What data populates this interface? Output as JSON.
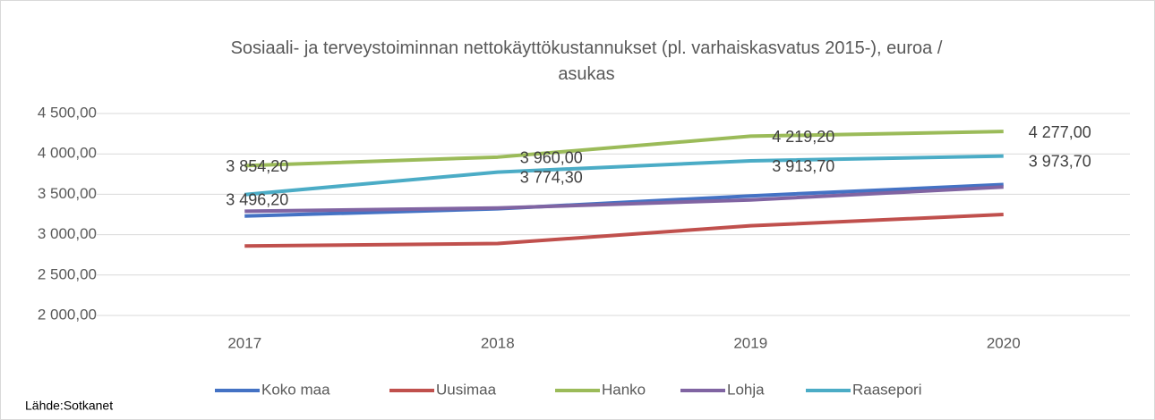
{
  "chart_data": {
    "type": "line",
    "title": "Sosiaali- ja terveystoiminnan nettokäyttökustannukset (pl. varhaiskasvatus 2015-), euroa / asukas",
    "categories": [
      "2017",
      "2018",
      "2019",
      "2020"
    ],
    "series": [
      {
        "name": "Koko maa",
        "color": "#4472c4",
        "values": [
          3230,
          3320,
          3480,
          3620
        ]
      },
      {
        "name": "Uusimaa",
        "color": "#c0504d",
        "values": [
          2860,
          2890,
          3110,
          3250
        ]
      },
      {
        "name": "Hanko",
        "color": "#9bbb59",
        "values": [
          3854.2,
          3960,
          4219.2,
          4277
        ],
        "value_labels": [
          "3 854,20",
          "3 960,00",
          "4 219,20",
          "4 277,00"
        ]
      },
      {
        "name": "Lohja",
        "color": "#8064a2",
        "values": [
          3290,
          3330,
          3430,
          3590
        ]
      },
      {
        "name": "Raasepori",
        "color": "#4bacc6",
        "values": [
          3496.2,
          3774.3,
          3913.7,
          3973.7
        ],
        "value_labels": [
          "3 496,20",
          "3 774,30",
          "3 913,70",
          "3 973,70"
        ]
      }
    ],
    "ylim": [
      2000,
      4500
    ],
    "yticks": [
      {
        "value": 2000,
        "label": "2 000,00"
      },
      {
        "value": 2500,
        "label": "2 500,00"
      },
      {
        "value": 3000,
        "label": "3 000,00"
      },
      {
        "value": 3500,
        "label": "3 500,00"
      },
      {
        "value": 4000,
        "label": "4 000,00"
      },
      {
        "value": 4500,
        "label": "4 500,00"
      }
    ],
    "grid": true,
    "legend": "bottom",
    "source": "Lähde:Sotkanet"
  }
}
